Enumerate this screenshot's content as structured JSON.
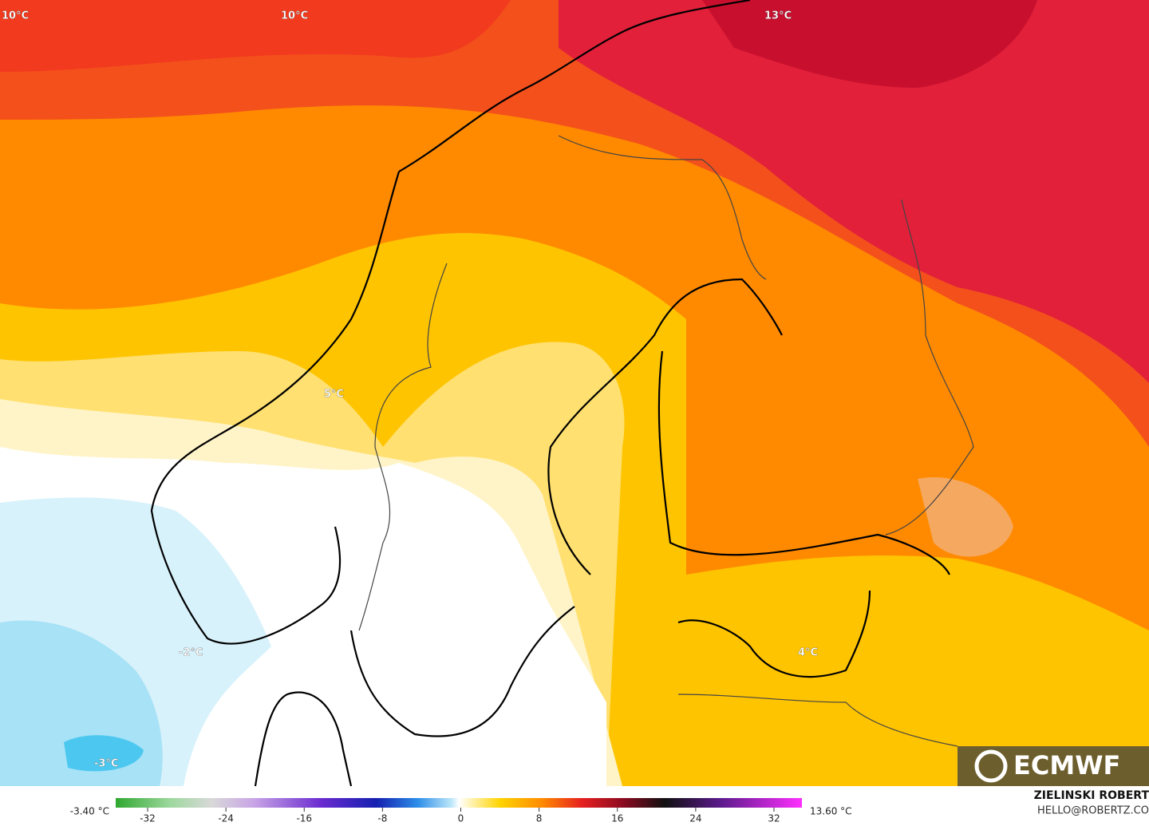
{
  "map_labels": [
    "10°C",
    "10°C",
    "13°C",
    "5°C",
    "-2°C",
    "-3°C",
    "4°C"
  ],
  "logo": "ECMWF",
  "colorbar": {
    "min_label": "-3.40 °C",
    "max_label": "13.60 °C",
    "ticks": [
      -32,
      -24,
      -16,
      -8,
      0,
      8,
      16,
      24,
      32
    ]
  },
  "credit": {
    "name": "ZIELINSKI ROBERT",
    "email": "HELLO@ROBERTZ.CO"
  }
}
